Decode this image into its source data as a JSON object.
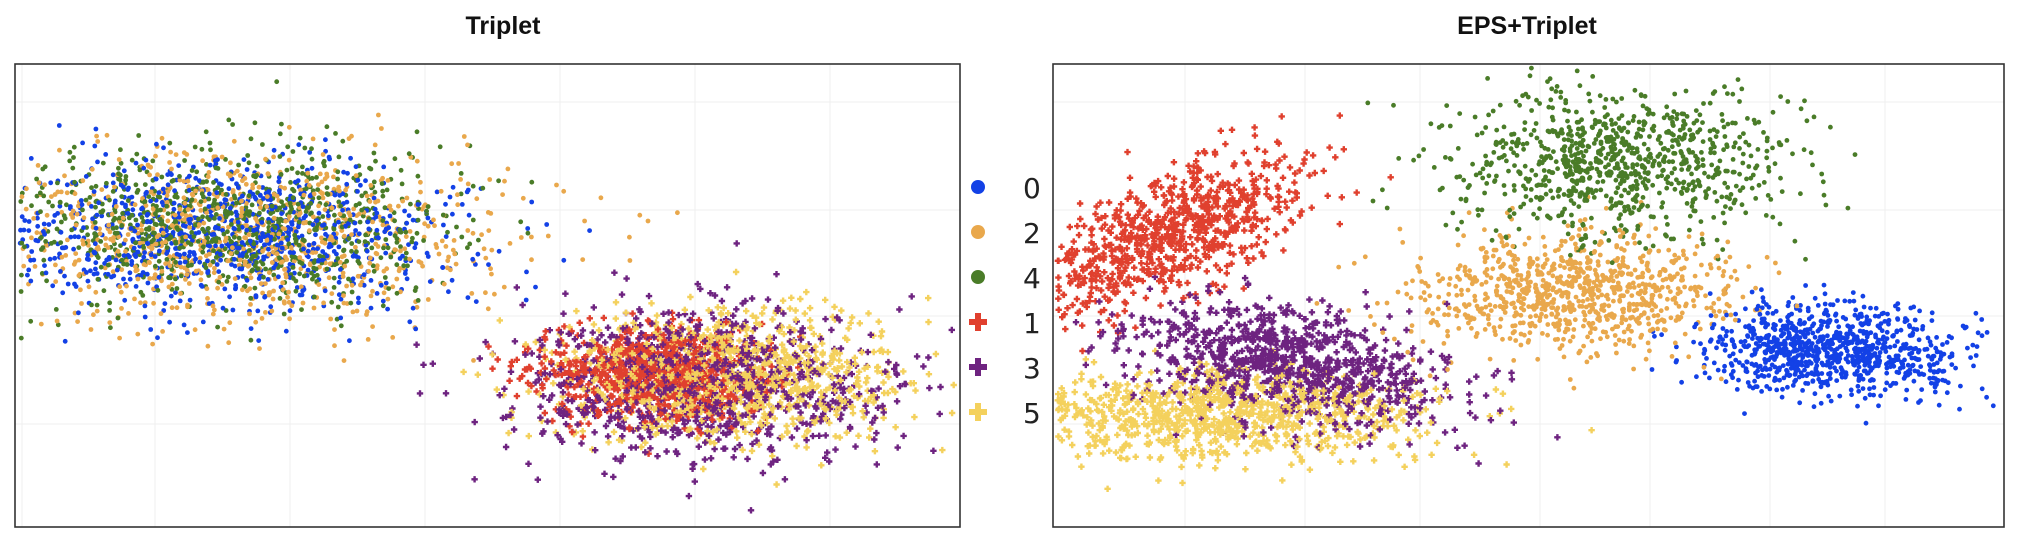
{
  "chart_data": [
    {
      "type": "scatter",
      "title": "Triplet",
      "xlabel": "",
      "ylabel": "",
      "xlim": [
        0,
        100
      ],
      "ylim": [
        0,
        100
      ],
      "grid": true,
      "legend": "center-right",
      "series": [
        {
          "name": "0",
          "marker": "dot",
          "color": "#1341e6",
          "count": 900,
          "center": [
            22,
            63
          ],
          "spread": [
            12,
            8
          ],
          "rotation": 0
        },
        {
          "name": "2",
          "marker": "dot",
          "color": "#e9a84c",
          "count": 900,
          "center": [
            24,
            63
          ],
          "spread": [
            13,
            9
          ],
          "rotation": 0
        },
        {
          "name": "4",
          "marker": "dot",
          "color": "#4a7c28",
          "count": 900,
          "center": [
            23,
            65
          ],
          "spread": [
            12,
            8.5
          ],
          "rotation": 0
        },
        {
          "name": "1",
          "marker": "plus",
          "color": "#e0402e",
          "count": 800,
          "center": [
            68,
            33
          ],
          "spread": [
            6,
            5
          ],
          "rotation": 0
        },
        {
          "name": "3",
          "marker": "plus",
          "color": "#6e2380",
          "count": 900,
          "center": [
            72,
            31
          ],
          "spread": [
            10,
            8
          ],
          "rotation": 0
        },
        {
          "name": "5",
          "marker": "plus",
          "color": "#f4d15d",
          "count": 900,
          "center": [
            76,
            33
          ],
          "spread": [
            9,
            7
          ],
          "rotation": 0
        }
      ]
    },
    {
      "type": "scatter",
      "title": "EPS+Triplet",
      "xlabel": "",
      "ylabel": "",
      "xlim": [
        0,
        100
      ],
      "ylim": [
        0,
        100
      ],
      "grid": true,
      "legend": "none",
      "series": [
        {
          "name": "0",
          "marker": "dot",
          "color": "#1341e6",
          "count": 900,
          "center": [
            82,
            38
          ],
          "spread": [
            7,
            4.8
          ],
          "rotation": -8
        },
        {
          "name": "2",
          "marker": "dot",
          "color": "#e9a84c",
          "count": 900,
          "center": [
            55,
            50
          ],
          "spread": [
            8.5,
            6.5
          ],
          "rotation": 0
        },
        {
          "name": "4",
          "marker": "dot",
          "color": "#4a7c28",
          "count": 900,
          "center": [
            59,
            79
          ],
          "spread": [
            9,
            8
          ],
          "rotation": 0
        },
        {
          "name": "1",
          "marker": "plus",
          "color": "#e0402e",
          "count": 800,
          "center": [
            12,
            63
          ],
          "spread": [
            10,
            4.5
          ],
          "rotation": 52
        },
        {
          "name": "3",
          "marker": "plus",
          "color": "#6e2380",
          "count": 900,
          "center": [
            25,
            35
          ],
          "spread": [
            9.5,
            6
          ],
          "rotation": -30
        },
        {
          "name": "5",
          "marker": "plus",
          "color": "#f4d15d",
          "count": 900,
          "center": [
            17,
            24
          ],
          "spread": [
            11,
            4.8
          ],
          "rotation": 0
        }
      ]
    }
  ],
  "legend": {
    "entries": [
      {
        "label": "0",
        "marker": "dot",
        "color": "#1341e6"
      },
      {
        "label": "2",
        "marker": "dot",
        "color": "#e9a84c"
      },
      {
        "label": "4",
        "marker": "dot",
        "color": "#4a7c28"
      },
      {
        "label": "1",
        "marker": "plus",
        "color": "#e0402e"
      },
      {
        "label": "3",
        "marker": "plus",
        "color": "#6e2380"
      },
      {
        "label": "5",
        "marker": "plus",
        "color": "#f4d15d"
      }
    ]
  }
}
